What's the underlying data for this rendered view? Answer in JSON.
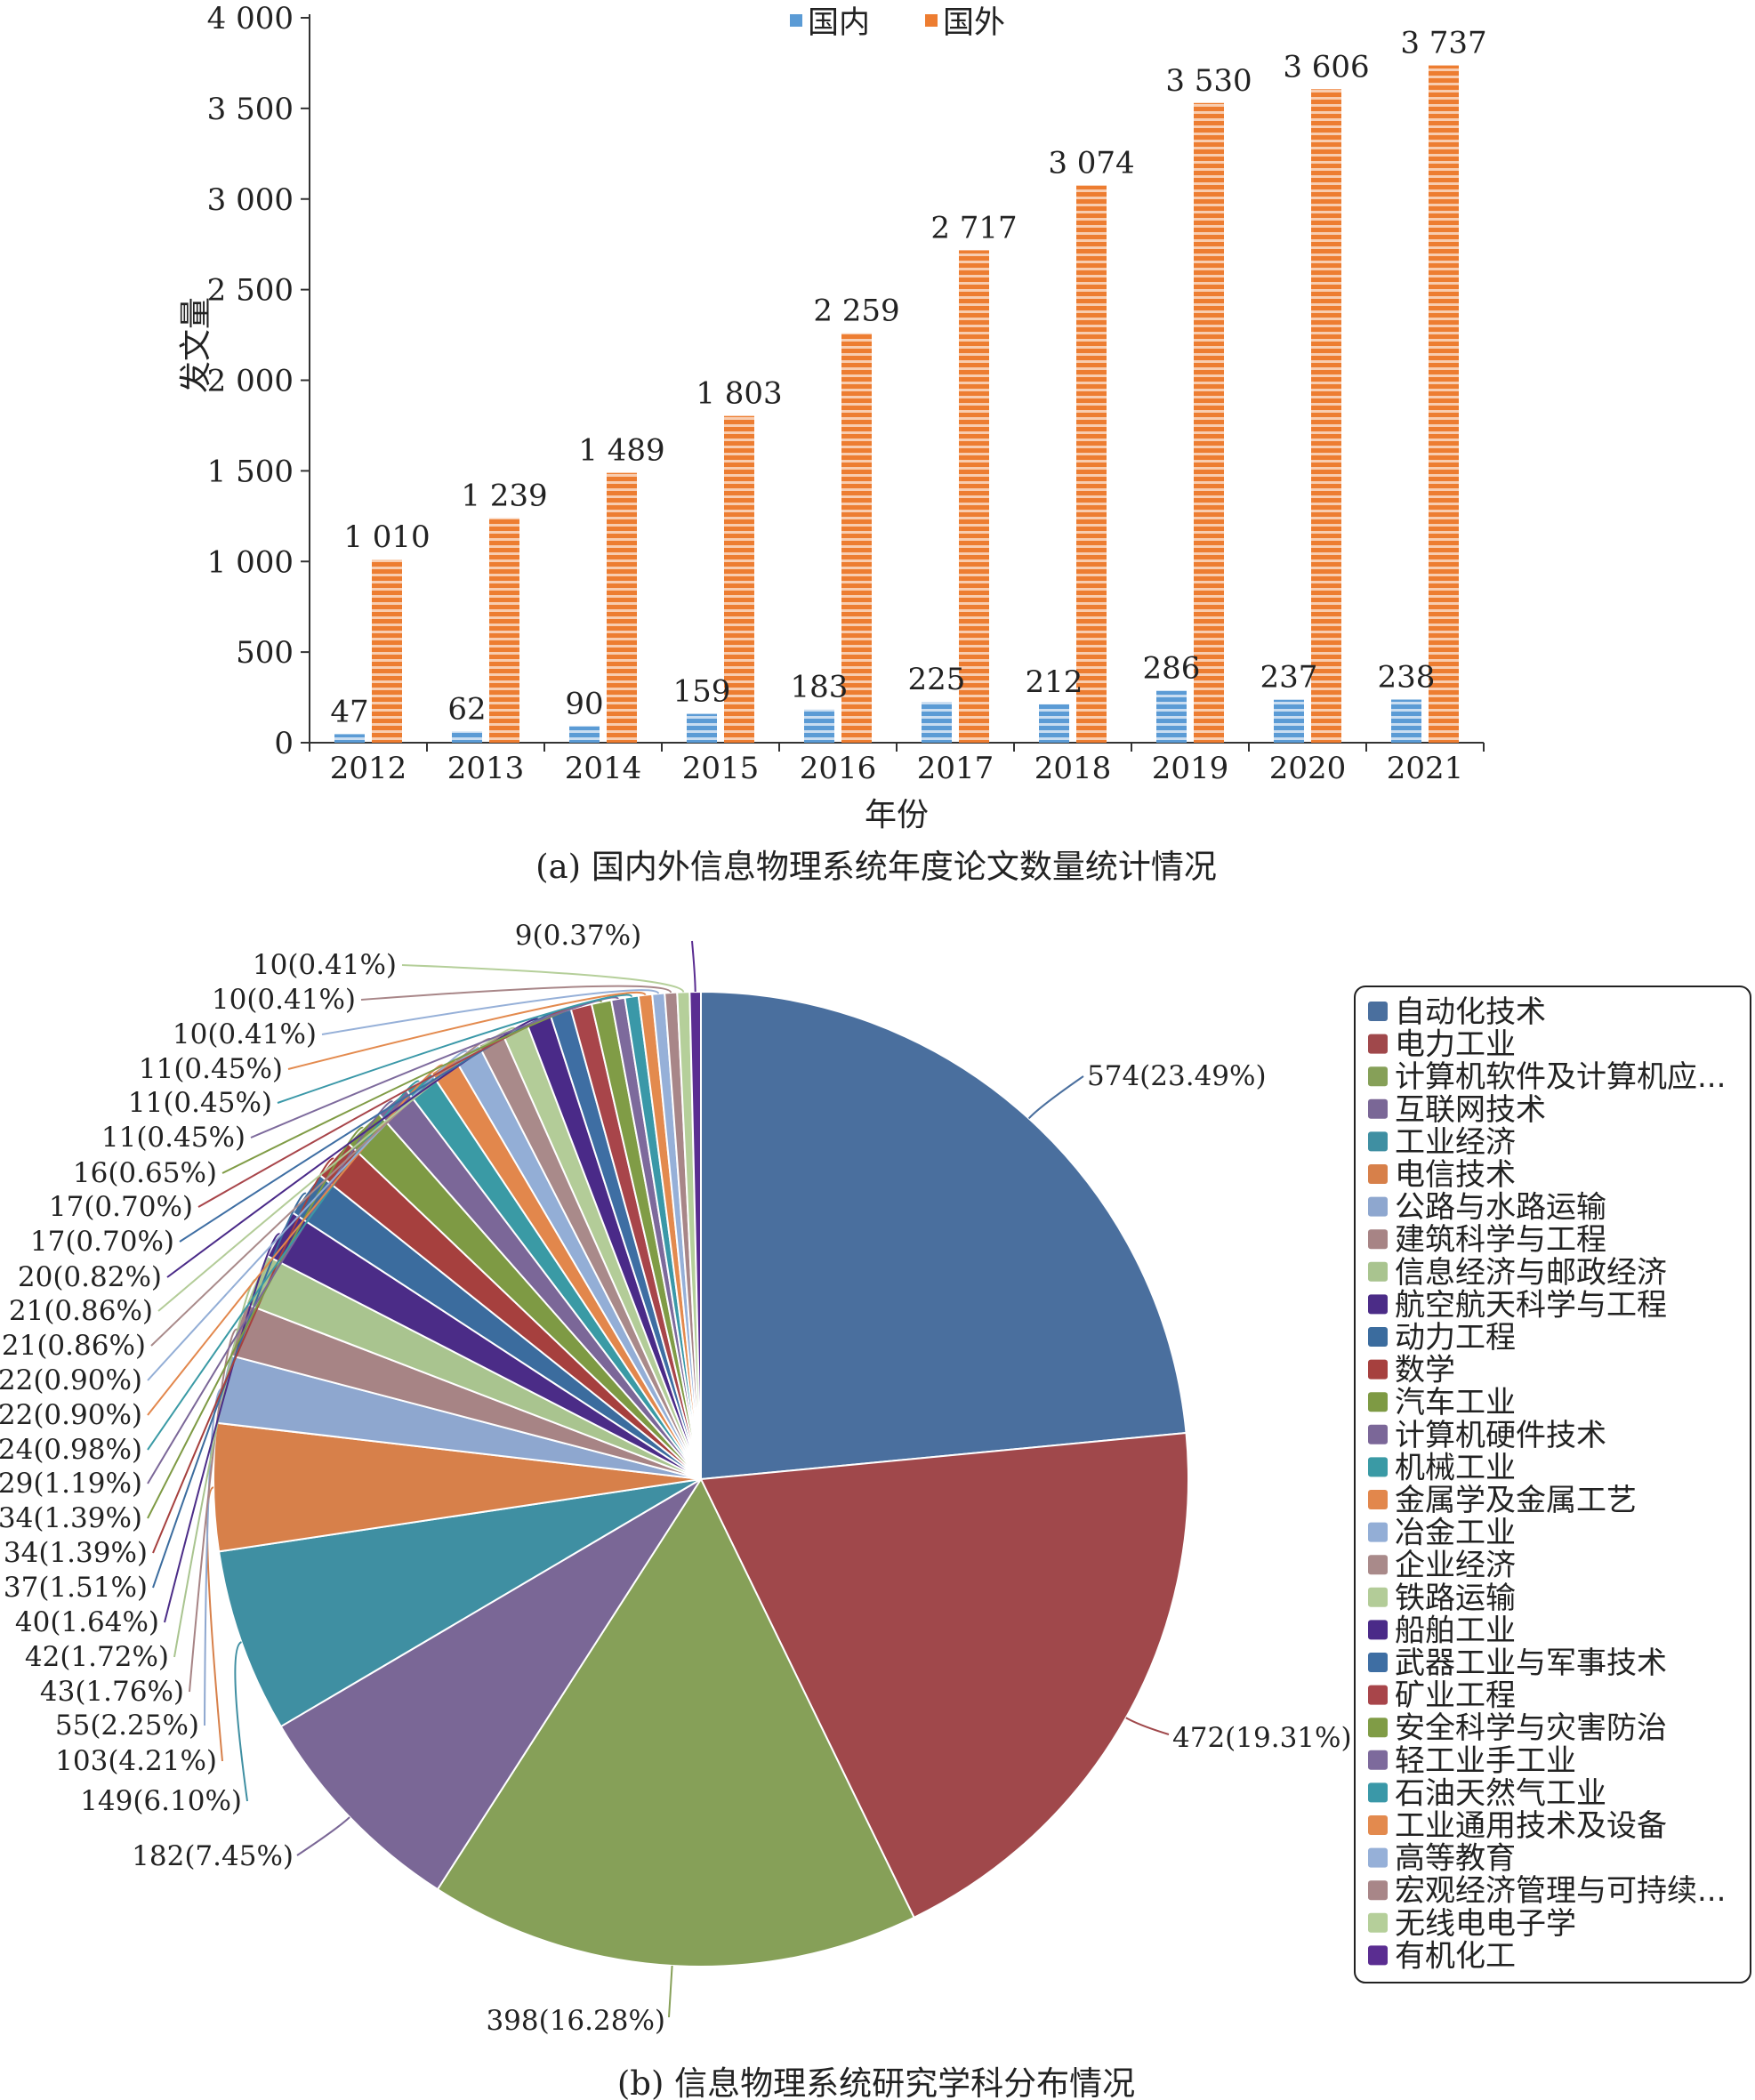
{
  "chart_data": [
    {
      "type": "bar",
      "ylabel": "发文量",
      "xlabel": "年份",
      "caption": "(a) 国内外信息物理系统年度论文数量统计情况",
      "categories": [
        "2012",
        "2013",
        "2014",
        "2015",
        "2016",
        "2017",
        "2018",
        "2019",
        "2020",
        "2021"
      ],
      "yticks": [
        0,
        500,
        1000,
        1500,
        2000,
        2500,
        3000,
        3500,
        4000
      ],
      "ytick_labels": [
        "0",
        "500",
        "1 000",
        "1 500",
        "2 000",
        "2 500",
        "3 000",
        "3 500",
        "4 000"
      ],
      "ylim": [
        0,
        4000
      ],
      "legend_position": "top-center",
      "series": [
        {
          "name": "国内",
          "color": "#5b9bd5",
          "values": [
            47,
            62,
            90,
            159,
            183,
            225,
            212,
            286,
            237,
            238
          ],
          "value_labels": [
            "47",
            "62",
            "90",
            "159",
            "183",
            "225",
            "212",
            "286",
            "237",
            "238"
          ]
        },
        {
          "name": "国外",
          "color": "#ed7d31",
          "values": [
            1010,
            1239,
            1489,
            1803,
            2259,
            2717,
            3074,
            3530,
            3606,
            3737
          ],
          "value_labels": [
            "1 010",
            "1 239",
            "1 489",
            "1 803",
            "2 259",
            "2 717",
            "3 074",
            "3 530",
            "3 606",
            "3 737"
          ]
        }
      ]
    },
    {
      "type": "pie",
      "caption": "(b) 信息物理系统研究学科分布情况",
      "legend_position": "right",
      "slices": [
        {
          "label": "自动化技术",
          "value": 574,
          "text": "574(23.49%)",
          "color": "#4a6f9e"
        },
        {
          "label": "电力工业",
          "value": 472,
          "text": "472(19.31%)",
          "color": "#a0484b"
        },
        {
          "label": "计算机软件及计算机应...",
          "value": 398,
          "text": "398(16.28%)",
          "color": "#86a058"
        },
        {
          "label": "互联网技术",
          "value": 182,
          "text": "182(7.45%)",
          "color": "#7a6796"
        },
        {
          "label": "工业经济",
          "value": 149,
          "text": "149(6.10%)",
          "color": "#3f8fa2"
        },
        {
          "label": "电信技术",
          "value": 103,
          "text": "103(4.21%)",
          "color": "#d7804a"
        },
        {
          "label": "公路与水路运输",
          "value": 55,
          "text": "55(2.25%)",
          "color": "#8ea7cf"
        },
        {
          "label": "建筑科学与工程",
          "value": 43,
          "text": "43(1.76%)",
          "color": "#a78485"
        },
        {
          "label": "信息经济与邮政经济",
          "value": 42,
          "text": "42(1.72%)",
          "color": "#a9c48f"
        },
        {
          "label": "航空航天科学与工程",
          "value": 40,
          "text": "40(1.64%)",
          "color": "#4b2c87"
        },
        {
          "label": "动力工程",
          "value": 37,
          "text": "37(1.51%)",
          "color": "#3b6c9e"
        },
        {
          "label": "数学",
          "value": 34,
          "text": "34(1.39%)",
          "color": "#a6403e"
        },
        {
          "label": "汽车工业",
          "value": 34,
          "text": "34(1.39%)",
          "color": "#7e9a44"
        },
        {
          "label": "计算机硬件技术",
          "value": 29,
          "text": "29(1.19%)",
          "color": "#7b6798"
        },
        {
          "label": "机械工业",
          "value": 24,
          "text": "24(0.98%)",
          "color": "#3a9aa5"
        },
        {
          "label": "金属学及金属工艺",
          "value": 22,
          "text": "22(0.90%)",
          "color": "#e2874c"
        },
        {
          "label": "冶金工业",
          "value": 22,
          "text": "22(0.90%)",
          "color": "#93aed6"
        },
        {
          "label": "企业经济",
          "value": 21,
          "text": "21(0.86%)",
          "color": "#a98a8a"
        },
        {
          "label": "铁路运输",
          "value": 21,
          "text": "21(0.86%)",
          "color": "#b3cc98"
        },
        {
          "label": "船舶工业",
          "value": 20,
          "text": "20(0.82%)",
          "color": "#4a2a88"
        },
        {
          "label": "武器工业与军事技术",
          "value": 17,
          "text": "17(0.70%)",
          "color": "#3e6ea3"
        },
        {
          "label": "矿业工程",
          "value": 17,
          "text": "17(0.70%)",
          "color": "#a8454a"
        },
        {
          "label": "安全科学与灾害防治",
          "value": 16,
          "text": "16(0.65%)",
          "color": "#809c46"
        },
        {
          "label": "轻工业手工业",
          "value": 11,
          "text": "11(0.45%)",
          "color": "#7d6a9c"
        },
        {
          "label": "石油天然气工业",
          "value": 11,
          "text": "11(0.45%)",
          "color": "#3a98a8"
        },
        {
          "label": "工业通用技术及设备",
          "value": 11,
          "text": "11(0.45%)",
          "color": "#e38a4e"
        },
        {
          "label": "高等教育",
          "value": 10,
          "text": "10(0.41%)",
          "color": "#96b0d8"
        },
        {
          "label": "宏观经济管理与可持续...",
          "value": 10,
          "text": "10(0.41%)",
          "color": "#a88688"
        },
        {
          "label": "无线电电子学",
          "value": 10,
          "text": "10(0.41%)",
          "color": "#b5cf9a"
        },
        {
          "label": "有机化工",
          "value": 9,
          "text": "9(0.37%)",
          "color": "#5a2d91"
        }
      ]
    }
  ]
}
